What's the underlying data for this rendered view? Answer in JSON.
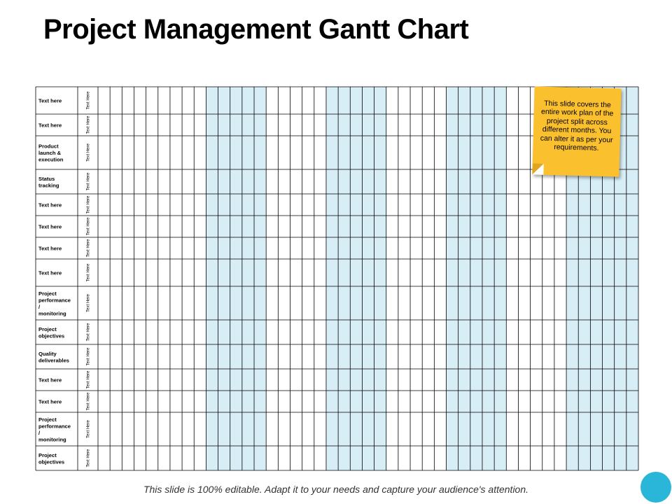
{
  "title": "Project Management Gantt Chart",
  "chart_data": {
    "type": "table",
    "rows": [
      {
        "task": "Text here",
        "sub": "Text Here"
      },
      {
        "task": "Text here",
        "sub": "Text Here"
      },
      {
        "task": "Product launch & execution",
        "sub": "Text Here"
      },
      {
        "task": "Status tracking",
        "sub": "Text Here"
      },
      {
        "task": "Text here",
        "sub": "Text Here"
      },
      {
        "task": "Text here",
        "sub": "Text Here"
      },
      {
        "task": "Text here",
        "sub": "Text Here"
      },
      {
        "task": "Text here",
        "sub": "Text Here"
      },
      {
        "task": "Project performance / monitoring",
        "sub": "Text Here"
      },
      {
        "task": "Project objectives",
        "sub": "Text Here"
      },
      {
        "task": "Quality deliverables",
        "sub": "Text Here"
      },
      {
        "task": "Text here",
        "sub": "Text Here"
      },
      {
        "task": "Text here",
        "sub": "Text Here"
      },
      {
        "task": "Project performance / monitoring",
        "sub": "Text Here"
      },
      {
        "task": "Project objectives",
        "sub": "Text Here"
      }
    ],
    "timeline_columns": 45,
    "highlighted_columns": [
      9,
      10,
      11,
      12,
      13,
      19,
      20,
      21,
      22,
      23,
      29,
      30,
      31,
      32,
      33,
      39,
      40,
      41,
      42,
      43,
      44
    ],
    "colors": {
      "highlight": "#d8eef6",
      "grid": "#000000"
    }
  },
  "note": "This slide covers the entire work plan of the project split across different months. You can alter it as per your requirements.",
  "footer": "This slide is 100% editable. Adapt it to your needs and capture your audience's attention."
}
